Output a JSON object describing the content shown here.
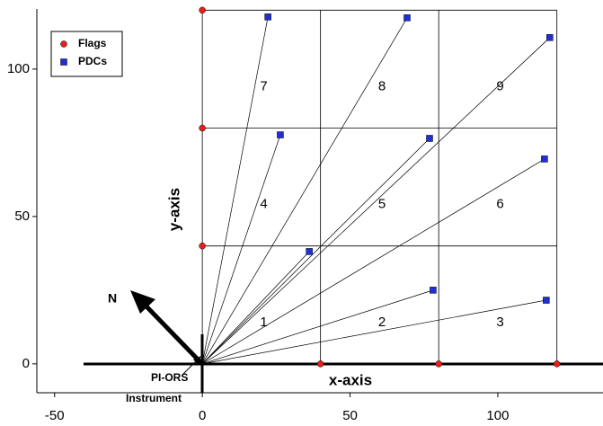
{
  "chart_data": {
    "type": "scatter",
    "xlabel": "x-axis",
    "ylabel": "y-axis",
    "xlim": [
      -56,
      135.6
    ],
    "ylim": [
      -9.8,
      120.4
    ],
    "xticks": [
      -50,
      0,
      50,
      100
    ],
    "yticks": [
      0,
      50,
      100
    ],
    "grid_x": [
      0,
      40,
      80,
      120
    ],
    "grid_y": [
      0,
      40,
      80,
      120
    ],
    "cells": [
      "1",
      "2",
      "3",
      "4",
      "5",
      "6",
      "7",
      "8",
      "9"
    ],
    "legend": "upper left",
    "series": [
      {
        "name": "Flags",
        "color": "#e8201c",
        "marker": "circle",
        "x": [
          0,
          0,
          0,
          40,
          80,
          120
        ],
        "values": [
          120,
          80,
          40,
          0,
          0,
          0
        ]
      },
      {
        "name": "PDCs",
        "color": "#1f2fd6",
        "marker": "square",
        "x": [
          36.2,
          78.1,
          116.4,
          26.4,
          76.9,
          115.8,
          22.2,
          69.3,
          117.6
        ],
        "values": [
          38.1,
          25,
          21.6,
          77.7,
          76.5,
          69.5,
          117.7,
          117.4,
          110.7
        ]
      }
    ],
    "annotations": [
      "N",
      "PI-ORS",
      "Instrument"
    ]
  }
}
